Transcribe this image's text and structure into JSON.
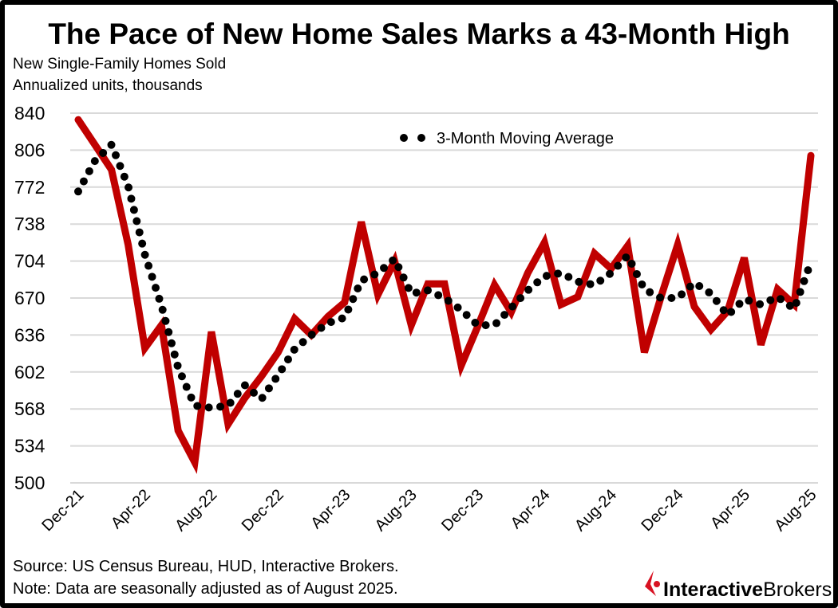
{
  "chart_data": {
    "type": "line",
    "title": "The Pace of New Home Sales Marks a 43-Month High",
    "subtitle": [
      "New Single-Family Homes Sold",
      "Annualized units, thousands"
    ],
    "xlabel": "",
    "ylabel": "",
    "ylim": [
      500,
      840
    ],
    "yticks": [
      840,
      806,
      772,
      738,
      704,
      670,
      636,
      602,
      568,
      534,
      500
    ],
    "grid": true,
    "legend_placement": "top-center",
    "x": [
      "Dec-21",
      "Jan-22",
      "Feb-22",
      "Mar-22",
      "Apr-22",
      "May-22",
      "Jun-22",
      "Jul-22",
      "Aug-22",
      "Sep-22",
      "Oct-22",
      "Nov-22",
      "Dec-22",
      "Jan-23",
      "Feb-23",
      "Mar-23",
      "Apr-23",
      "May-23",
      "Jun-23",
      "Jul-23",
      "Aug-23",
      "Sep-23",
      "Oct-23",
      "Nov-23",
      "Dec-23",
      "Jan-24",
      "Feb-24",
      "Mar-24",
      "Apr-24",
      "May-24",
      "Jun-24",
      "Jul-24",
      "Aug-24",
      "Sep-24",
      "Oct-24",
      "Nov-24",
      "Dec-24",
      "Jan-25",
      "Feb-25",
      "Mar-25",
      "Apr-25",
      "May-25",
      "Jun-25",
      "Jul-25",
      "Aug-25"
    ],
    "xtick_labels": [
      "Dec-21",
      "Apr-22",
      "Aug-22",
      "Dec-22",
      "Apr-23",
      "Aug-23",
      "Dec-23",
      "Apr-24",
      "Aug-24",
      "Dec-24",
      "Apr-25",
      "Aug-25"
    ],
    "series": [
      {
        "color": "#c00000",
        "style": "solid",
        "values": [
          834,
          811,
          788,
          719,
          624,
          645,
          548,
          519,
          639,
          554,
          578,
          598,
          620,
          651,
          636,
          653,
          666,
          740,
          673,
          704,
          645,
          683,
          683,
          608,
          644,
          682,
          657,
          693,
          721,
          664,
          671,
          711,
          697,
          718,
          620,
          671,
          719,
          662,
          641,
          658,
          707,
          627,
          678,
          664,
          801
        ]
      },
      {
        "name": "3-Month Moving Average",
        "color": "#000000",
        "style": "dotted",
        "values": [
          768,
          796,
          811,
          773,
          710,
          663,
          606,
          571,
          569,
          571,
          590,
          577,
          599,
          623,
          636,
          647,
          652,
          686,
          693,
          706,
          674,
          677,
          670,
          659,
          645,
          645,
          661,
          677,
          690,
          693,
          685,
          682,
          693,
          709,
          678,
          670,
          670,
          684,
          674,
          654,
          669,
          664,
          671,
          660,
          703
        ]
      }
    ]
  },
  "footer": {
    "source": "Source: US Census Bureau, HUD, Interactive Brokers.",
    "note": "Note: Data are seasonally adjusted as of August 2025."
  },
  "logo": {
    "text_bold": "Interactive",
    "text_regular": "Brokers",
    "color": "#d81222"
  }
}
